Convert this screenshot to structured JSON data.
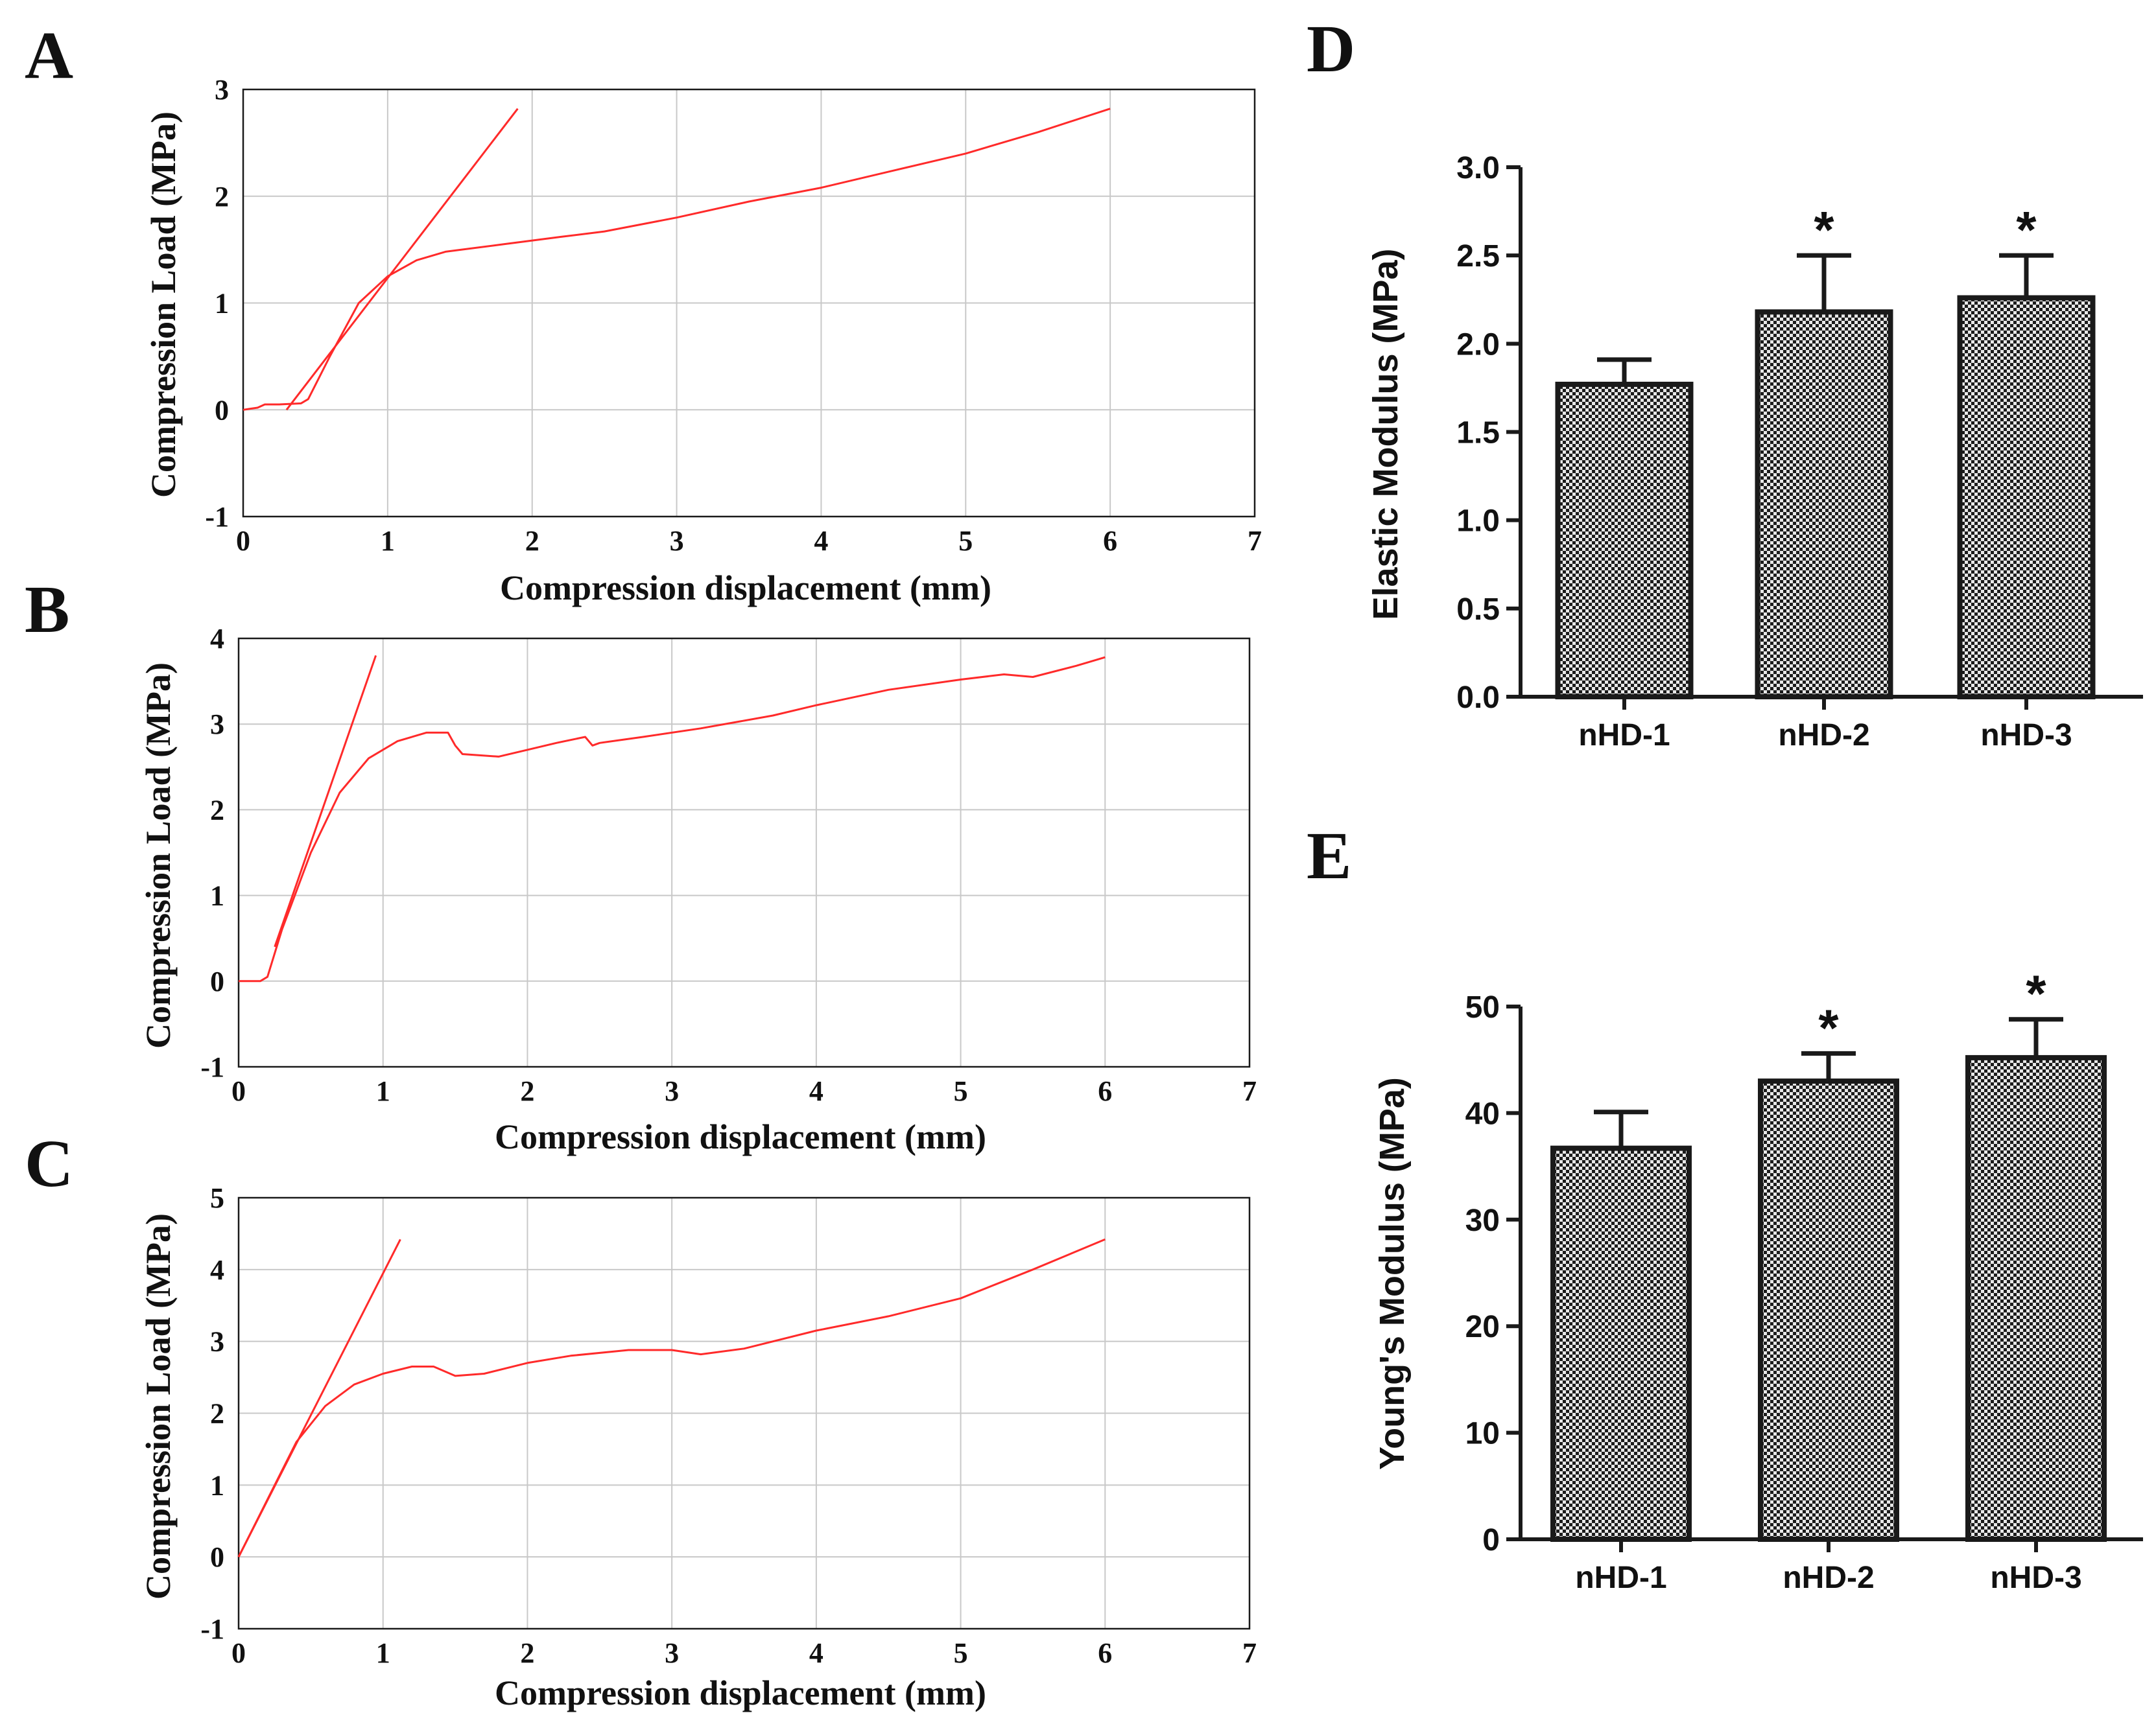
{
  "colors": {
    "curve": "#ff2a2a",
    "grid": "#c8c8c8",
    "axis": "#1a1a1a",
    "bar_dark": "#1c1c1c",
    "bar_light": "#e8e8e8"
  },
  "chart_data": [
    {
      "panel": "A",
      "type": "line",
      "title": "",
      "xlabel": "Compression displacement (mm)",
      "ylabel": "Compression Load (MPa)",
      "xlim": [
        0,
        7
      ],
      "ylim": [
        -1,
        3
      ],
      "xticks": [
        "0",
        "1",
        "2",
        "3",
        "4",
        "5",
        "6",
        "7"
      ],
      "yticks": [
        "-1",
        "0",
        "1",
        "2",
        "3"
      ],
      "grid": true,
      "series": [
        {
          "name": "load curve",
          "x": [
            0,
            0.1,
            0.15,
            0.25,
            0.4,
            0.45,
            0.6,
            0.8,
            1.0,
            1.2,
            1.4,
            1.8,
            2.2,
            2.5,
            3.0,
            3.5,
            4.0,
            4.5,
            5.0,
            5.5,
            6.0
          ],
          "y": [
            0,
            0.02,
            0.05,
            0.05,
            0.06,
            0.1,
            0.5,
            1.0,
            1.25,
            1.4,
            1.48,
            1.55,
            1.62,
            1.67,
            1.8,
            1.95,
            2.08,
            2.24,
            2.4,
            2.6,
            2.82
          ]
        },
        {
          "name": "tangent line",
          "x": [
            0.3,
            1.9
          ],
          "y": [
            0.0,
            2.82
          ]
        }
      ]
    },
    {
      "panel": "B",
      "type": "line",
      "title": "",
      "xlabel": "Compression displacement (mm)",
      "ylabel": "Compression Load (MPa)",
      "xlim": [
        0,
        7
      ],
      "ylim": [
        -1,
        4
      ],
      "xticks": [
        "0",
        "1",
        "2",
        "3",
        "4",
        "5",
        "6",
        "7"
      ],
      "yticks": [
        "-1",
        "0",
        "1",
        "2",
        "3",
        "4"
      ],
      "grid": true,
      "series": [
        {
          "name": "load curve",
          "x": [
            0,
            0.15,
            0.2,
            0.3,
            0.5,
            0.7,
            0.9,
            1.1,
            1.3,
            1.45,
            1.5,
            1.55,
            1.8,
            2.0,
            2.2,
            2.4,
            2.45,
            2.5,
            2.8,
            3.2,
            3.7,
            4.0,
            4.5,
            5.0,
            5.3,
            5.5,
            5.8,
            6.0
          ],
          "y": [
            0,
            0,
            0.05,
            0.6,
            1.5,
            2.2,
            2.6,
            2.8,
            2.9,
            2.9,
            2.75,
            2.65,
            2.62,
            2.7,
            2.78,
            2.85,
            2.75,
            2.78,
            2.85,
            2.95,
            3.1,
            3.22,
            3.4,
            3.52,
            3.58,
            3.55,
            3.68,
            3.78
          ]
        },
        {
          "name": "tangent line",
          "x": [
            0.25,
            0.95
          ],
          "y": [
            0.4,
            3.8
          ]
        }
      ]
    },
    {
      "panel": "C",
      "type": "line",
      "title": "",
      "xlabel": "Compression displacement (mm)",
      "ylabel": "Compression Load (MPa)",
      "xlim": [
        0,
        7
      ],
      "ylim": [
        -1,
        5
      ],
      "xticks": [
        "0",
        "1",
        "2",
        "3",
        "4",
        "5",
        "6",
        "7"
      ],
      "yticks": [
        "-1",
        "0",
        "1",
        "2",
        "3",
        "4",
        "5"
      ],
      "grid": true,
      "series": [
        {
          "name": "load curve",
          "x": [
            0,
            0.2,
            0.4,
            0.6,
            0.8,
            1.0,
            1.2,
            1.35,
            1.5,
            1.7,
            2.0,
            2.3,
            2.7,
            3.0,
            3.2,
            3.5,
            4.0,
            4.5,
            5.0,
            5.5,
            6.0
          ],
          "y": [
            0,
            0.8,
            1.6,
            2.1,
            2.4,
            2.55,
            2.65,
            2.65,
            2.52,
            2.55,
            2.7,
            2.8,
            2.88,
            2.88,
            2.82,
            2.9,
            3.15,
            3.35,
            3.6,
            4.0,
            4.42
          ]
        },
        {
          "name": "tangent line",
          "x": [
            0.0,
            1.12
          ],
          "y": [
            0.0,
            4.42
          ]
        }
      ]
    },
    {
      "panel": "D",
      "type": "bar",
      "title": "",
      "xlabel": "",
      "ylabel": "Elastic Modulus (MPa)",
      "categories": [
        "nHD-1",
        "nHD-2",
        "nHD-3"
      ],
      "values": [
        1.77,
        2.18,
        2.26
      ],
      "errors": [
        0.14,
        0.32,
        0.24
      ],
      "significance": [
        "",
        "*",
        "*"
      ],
      "ylim": [
        0,
        3.0
      ],
      "yticks": [
        "0.0",
        "0.5",
        "1.0",
        "1.5",
        "2.0",
        "2.5",
        "3.0"
      ]
    },
    {
      "panel": "E",
      "type": "bar",
      "title": "",
      "xlabel": "",
      "ylabel": "Young's Modulus (MPa)",
      "categories": [
        "nHD-1",
        "nHD-2",
        "nHD-3"
      ],
      "values": [
        36.7,
        43.0,
        45.2
      ],
      "errors": [
        3.4,
        2.6,
        3.6
      ],
      "significance": [
        "",
        "*",
        "*"
      ],
      "ylim": [
        0,
        50
      ],
      "yticks": [
        "0",
        "10",
        "20",
        "30",
        "40",
        "50"
      ]
    }
  ]
}
